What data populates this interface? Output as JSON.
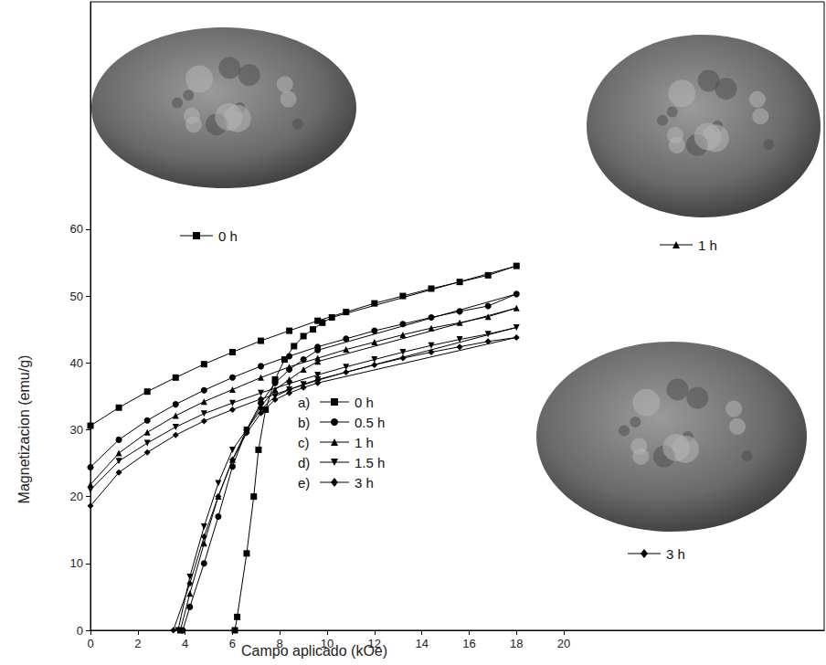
{
  "chart_data": {
    "type": "line",
    "x_label": "Campo aplicado (kOe)",
    "y_label": "Magnetizacion (emu/g)",
    "xlim": [
      0,
      31
    ],
    "xticks": [
      0,
      2,
      4,
      6,
      8,
      10,
      12,
      14,
      16,
      18,
      20
    ],
    "ylim": [
      0,
      94
    ],
    "yticks": [
      0,
      10,
      20,
      30,
      40,
      50,
      60
    ],
    "grid": false,
    "legend": "center",
    "series": [
      {
        "tag": "a)",
        "name": "0 h",
        "color": "#000000",
        "marker": "square",
        "x": [
          0,
          1.2,
          2.4,
          3.6,
          4.8,
          6,
          7.2,
          8.4,
          9.6,
          10.8,
          12,
          13.2,
          14.4,
          15.6,
          16.8,
          18,
          10.2,
          9.8,
          9.4,
          9,
          8.6,
          8.2,
          7.8,
          7.4,
          7.1,
          6.9,
          6.6,
          6.2,
          6.1
        ],
        "values": [
          30.6,
          33.3,
          35.7,
          37.8,
          39.8,
          41.6,
          43.3,
          44.8,
          46.3,
          47.6,
          48.9,
          50,
          51.1,
          52.1,
          53.1,
          54.5,
          46.8,
          46,
          45,
          44,
          42.5,
          40.5,
          37.5,
          33,
          27,
          20,
          11.5,
          2,
          0
        ]
      },
      {
        "tag": "b)",
        "name": "0.5 h",
        "color": "#000000",
        "marker": "circle",
        "x": [
          0,
          1.2,
          2.4,
          3.6,
          4.8,
          6,
          7.2,
          8.4,
          9.6,
          10.8,
          12,
          13.2,
          14.4,
          15.6,
          16.8,
          18,
          9.6,
          9,
          8.4,
          7.8,
          7.2,
          6.6,
          6,
          5.4,
          4.8,
          4.2,
          3.9
        ],
        "values": [
          24.4,
          28.5,
          31.4,
          33.8,
          35.9,
          37.8,
          39.5,
          41,
          42.4,
          43.6,
          44.8,
          45.8,
          46.8,
          47.7,
          48.5,
          50.3,
          41.9,
          40.5,
          39,
          37,
          34,
          30,
          24.5,
          17,
          10,
          3.5,
          0
        ]
      },
      {
        "tag": "c)",
        "name": "1 h",
        "color": "#000000",
        "marker": "triangle",
        "x": [
          0,
          1.2,
          2.4,
          3.6,
          4.8,
          6,
          7.2,
          8.4,
          9.6,
          10.8,
          12,
          13.2,
          14.4,
          15.6,
          16.8,
          18,
          9.6,
          9,
          8.4,
          7.8,
          7.2,
          6.6,
          6,
          5.4,
          4.8,
          4.2,
          3.8
        ],
        "values": [
          21.8,
          26.5,
          29.6,
          32.1,
          34.2,
          36,
          37.8,
          39.4,
          40.7,
          42,
          43.1,
          44.2,
          45.2,
          46,
          46.9,
          48.2,
          40.2,
          39,
          37.5,
          36,
          33.5,
          30,
          25.5,
          20,
          13,
          5.5,
          0
        ]
      },
      {
        "tag": "d)",
        "name": "1.5 h",
        "color": "#000000",
        "marker": "triangle-down",
        "x": [
          0,
          1.2,
          2.4,
          3.6,
          4.8,
          6,
          7.2,
          8.4,
          9.6,
          10.8,
          12,
          13.2,
          14.4,
          15.6,
          16.8,
          18,
          9.6,
          9,
          8.4,
          7.8,
          7.2,
          6.6,
          6,
          5.4,
          4.8,
          4.2,
          3.7
        ],
        "values": [
          21,
          25.3,
          28,
          30.4,
          32.4,
          34,
          35.5,
          36.9,
          38.2,
          39.4,
          40.5,
          41.6,
          42.6,
          43.5,
          44.3,
          45.3,
          37.5,
          36.8,
          36,
          35,
          33,
          30,
          27,
          22,
          15.5,
          8,
          0
        ]
      },
      {
        "tag": "e)",
        "name": "3 h",
        "color": "#000000",
        "marker": "diamond",
        "x": [
          0,
          1.2,
          2.4,
          3.6,
          4.8,
          6,
          7.2,
          8.4,
          9.6,
          10.8,
          12,
          13.2,
          14.4,
          15.6,
          16.8,
          18,
          9.6,
          9,
          8.4,
          7.8,
          7.2,
          6.6,
          6,
          5.4,
          4.8,
          4.2,
          3.5
        ],
        "values": [
          18.6,
          23.6,
          26.6,
          29.2,
          31.3,
          33,
          34.6,
          36,
          37.4,
          38.6,
          39.7,
          40.7,
          41.6,
          42.4,
          43.2,
          43.8,
          37,
          36.3,
          35.5,
          34.5,
          32.5,
          29.5,
          25.5,
          20,
          14,
          7,
          0
        ]
      }
    ],
    "insets": [
      {
        "label": "0 h",
        "marker": "square"
      },
      {
        "label": "1 h",
        "marker": "triangle"
      },
      {
        "label": "3 h",
        "marker": "diamond"
      }
    ]
  }
}
